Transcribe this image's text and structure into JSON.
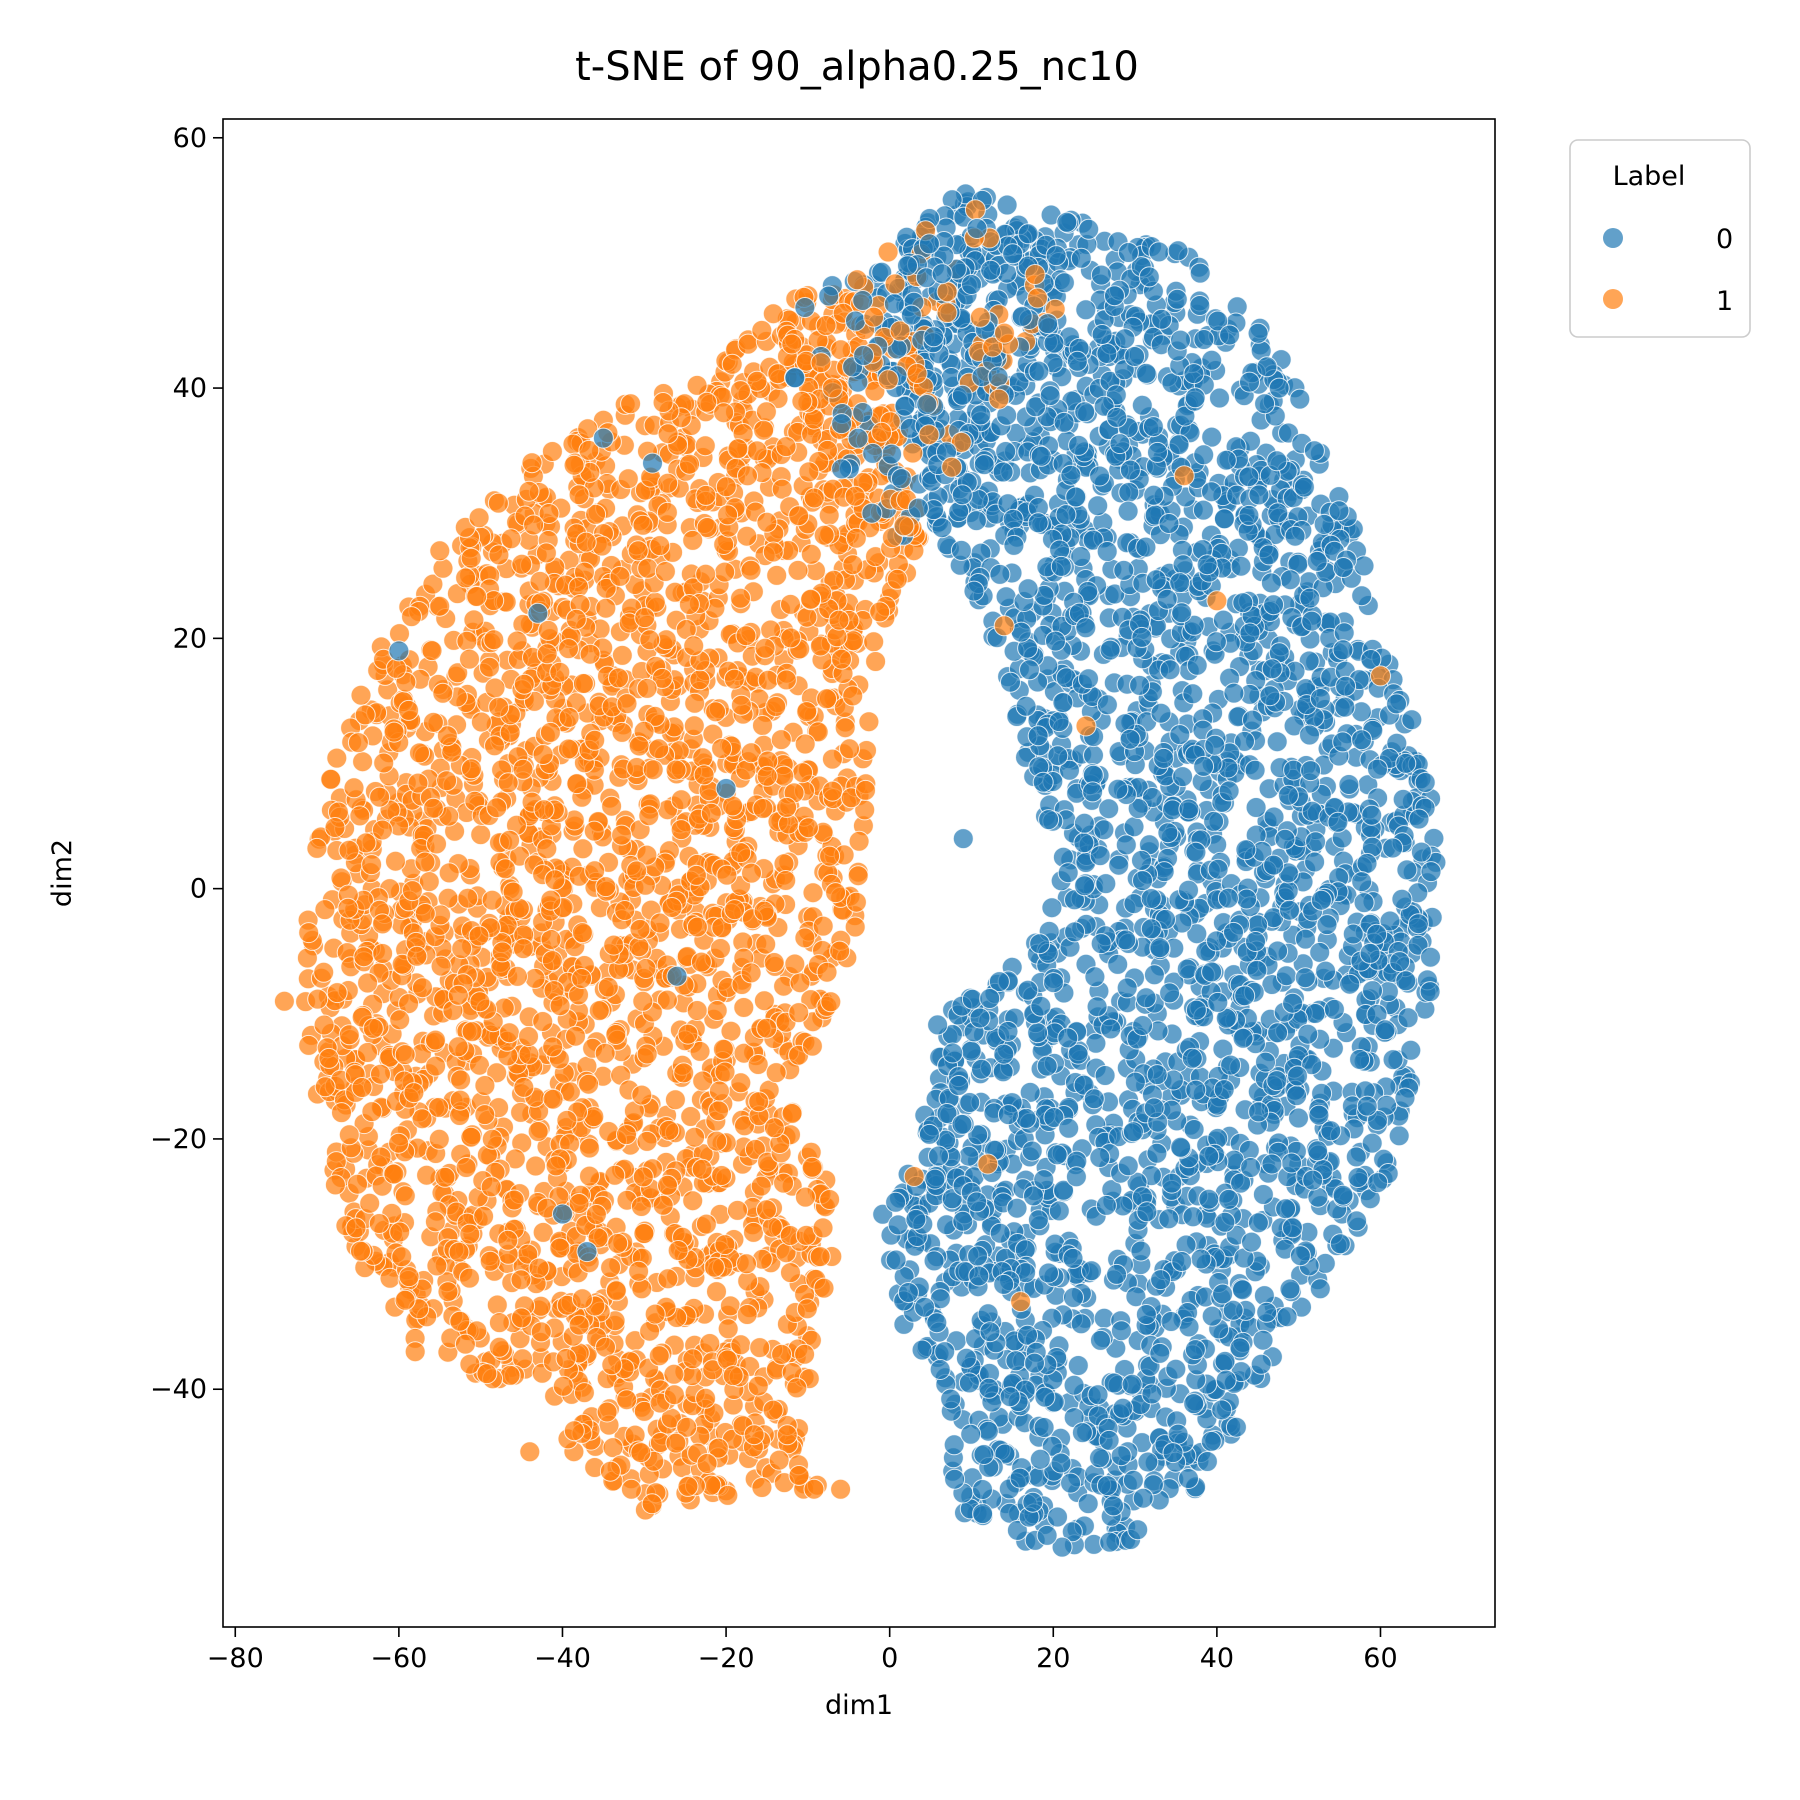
{
  "chart_data": {
    "type": "scatter",
    "title": "t-SNE of 90_alpha0.25_nc10",
    "xlabel": "dim1",
    "ylabel": "dim2",
    "xlim": [
      -81.5,
      74
    ],
    "ylim": [
      -59,
      61.5
    ],
    "xticks": [
      -80,
      -60,
      -40,
      -20,
      0,
      20,
      40,
      60
    ],
    "yticks": [
      -40,
      -20,
      0,
      20,
      40,
      60
    ],
    "grid": false,
    "legend": {
      "title": "Label",
      "position": "outside top-right"
    },
    "series": [
      {
        "name": "0",
        "color": "#1f77b4",
        "regions": [
          [
            [
              8,
              56
            ],
            [
              20,
              54
            ],
            [
              36,
              51
            ],
            [
              50,
              42
            ],
            [
              53,
              34
            ],
            [
              58,
              28
            ],
            [
              60,
              20
            ],
            [
              65,
              12
            ],
            [
              67,
              5
            ],
            [
              66,
              -10
            ],
            [
              62,
              -22
            ],
            [
              55,
              -30
            ],
            [
              48,
              -36
            ],
            [
              42,
              -44
            ],
            [
              37,
              -49
            ],
            [
              28,
              -53
            ],
            [
              20,
              -53
            ],
            [
              8,
              -50
            ],
            [
              7,
              -40
            ],
            [
              0,
              -34
            ],
            [
              -1,
              -26
            ],
            [
              3,
              -22
            ],
            [
              6,
              -10
            ],
            [
              12,
              -8
            ],
            [
              18,
              -4
            ],
            [
              20,
              0
            ],
            [
              19,
              5
            ],
            [
              16,
              10
            ],
            [
              14,
              17
            ],
            [
              10,
              24
            ],
            [
              4,
              30
            ],
            [
              2,
              38
            ],
            [
              -2,
              44
            ],
            [
              -5,
              47
            ],
            [
              0,
              51
            ]
          ]
        ],
        "outliers": [
          [
            9,
            4
          ],
          [
            -20,
            8
          ],
          [
            -26,
            -7
          ],
          [
            -40,
            -26
          ],
          [
            -37,
            -29
          ],
          [
            -60,
            19
          ],
          [
            -43,
            22
          ],
          [
            -29,
            34
          ],
          [
            -35,
            36
          ]
        ]
      },
      {
        "name": "1",
        "color": "#ff7f0e",
        "regions": [
          [
            [
              -8,
              49
            ],
            [
              -15,
              46
            ],
            [
              -22,
              41
            ],
            [
              -32,
              39
            ],
            [
              -42,
              35
            ],
            [
              -50,
              31
            ],
            [
              -57,
              24
            ],
            [
              -62,
              20
            ],
            [
              -66,
              14
            ],
            [
              -69,
              8
            ],
            [
              -71,
              0
            ],
            [
              -72,
              -8
            ],
            [
              -70,
              -18
            ],
            [
              -67,
              -27
            ],
            [
              -64,
              -31
            ],
            [
              -58,
              -36
            ],
            [
              -50,
              -39
            ],
            [
              -42,
              -40
            ],
            [
              -38,
              -46
            ],
            [
              -32,
              -50
            ],
            [
              -25,
              -50
            ],
            [
              -17,
              -48
            ],
            [
              -10,
              -48
            ],
            [
              -5,
              -48
            ],
            [
              -11,
              -46
            ],
            [
              -9,
              -36
            ],
            [
              -6,
              -28
            ],
            [
              -8,
              -22
            ],
            [
              -12,
              -17
            ],
            [
              -7,
              -10
            ],
            [
              -4,
              -3
            ],
            [
              -3,
              6
            ],
            [
              -2,
              16
            ],
            [
              0,
              22
            ],
            [
              4,
              28
            ],
            [
              3,
              34
            ],
            [
              0,
              40
            ],
            [
              -4,
              47
            ]
          ]
        ],
        "overlap_region": [
          [
            -10,
            48
          ],
          [
            -2,
            50
          ],
          [
            8,
            55
          ],
          [
            16,
            53
          ],
          [
            22,
            50
          ],
          [
            20,
            42
          ],
          [
            12,
            38
          ],
          [
            6,
            32
          ],
          [
            2,
            26
          ],
          [
            -3,
            30
          ],
          [
            -8,
            36
          ],
          [
            -14,
            42
          ]
        ],
        "outliers": [
          [
            -74,
            -9
          ],
          [
            -55,
            27
          ],
          [
            -44,
            -45
          ],
          [
            -58,
            -37
          ],
          [
            -6,
            -48
          ],
          [
            14,
            21
          ],
          [
            24,
            13
          ],
          [
            36,
            33
          ],
          [
            40,
            23
          ],
          [
            60,
            17
          ],
          [
            16,
            -33
          ],
          [
            12,
            -22
          ],
          [
            3,
            -23
          ]
        ]
      }
    ]
  }
}
